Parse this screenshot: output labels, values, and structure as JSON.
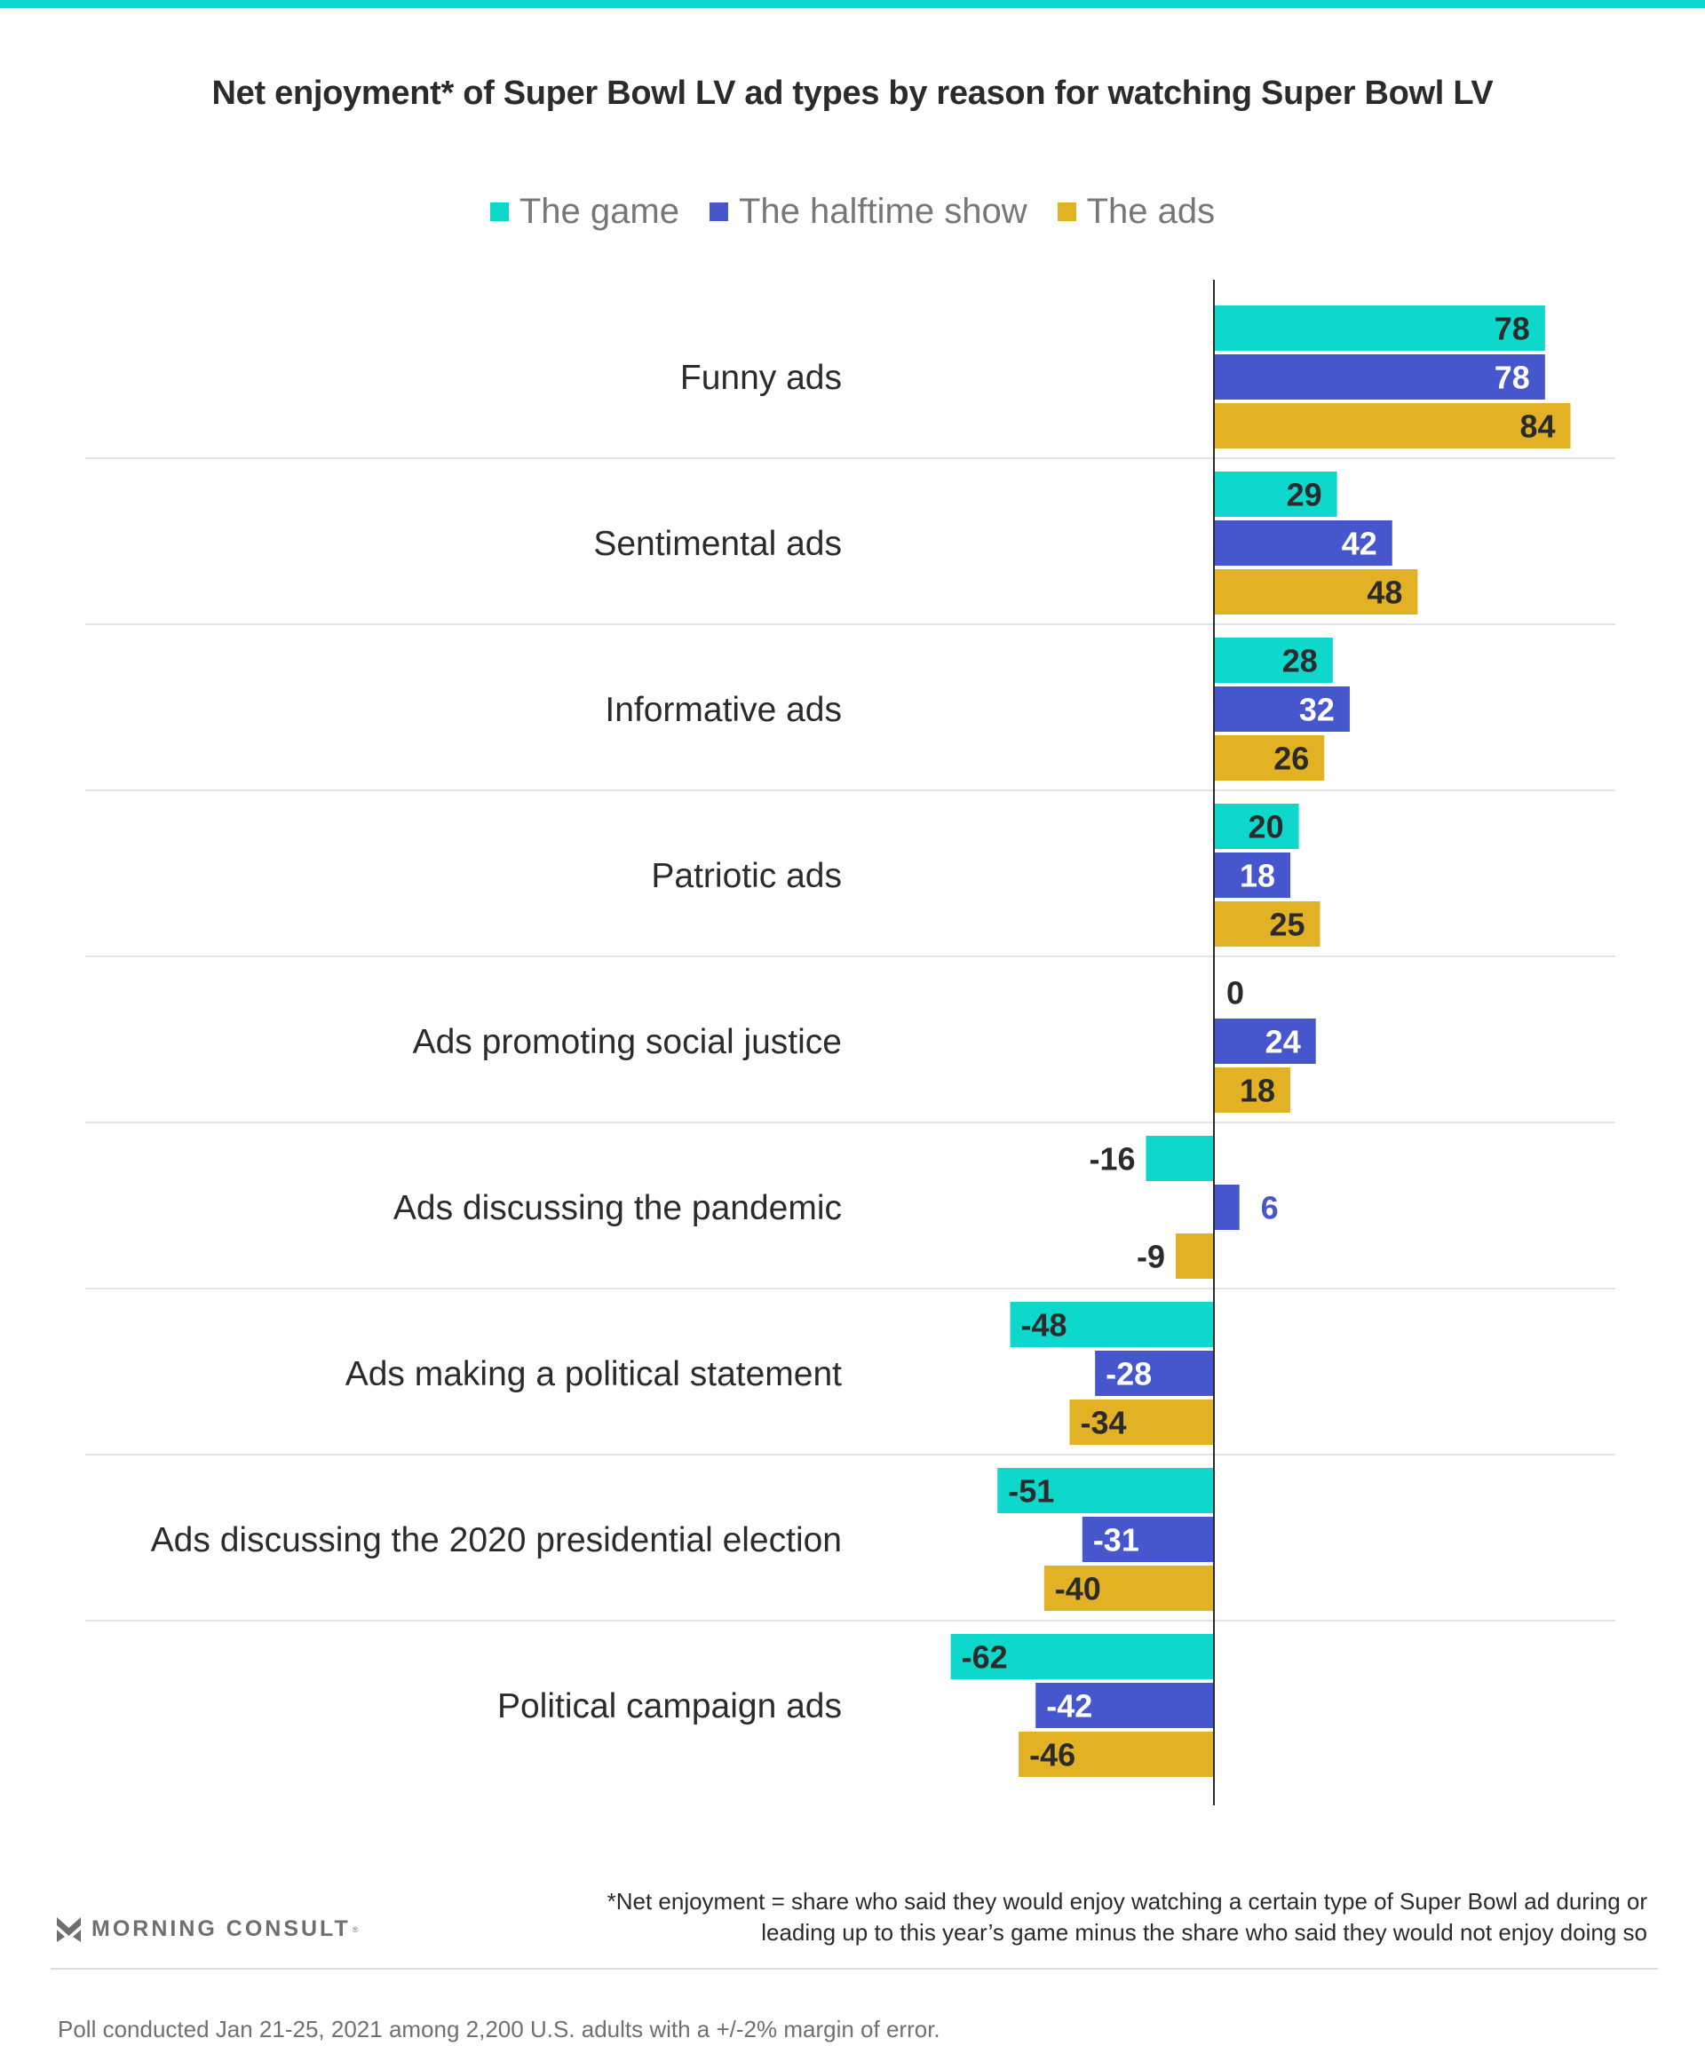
{
  "header": {
    "title": "Net enjoyment* of Super Bowl LV ad types by reason for watching Super Bowl LV"
  },
  "legend": [
    {
      "label": "The game",
      "color": "#0ed7cb"
    },
    {
      "label": "The halftime show",
      "color": "#4657ce"
    },
    {
      "label": "The ads",
      "color": "#e2b124"
    }
  ],
  "chart_data": {
    "type": "bar",
    "orientation": "horizontal",
    "title": "Net enjoyment* of Super Bowl LV ad types by reason for watching Super Bowl LV",
    "xlabel": "",
    "ylabel": "",
    "xlim": [
      -62,
      84
    ],
    "grid": false,
    "legend_position": "top-center",
    "categories": [
      "Funny ads",
      "Sentimental ads",
      "Informative ads",
      "Patriotic ads",
      "Ads promoting social justice",
      "Ads discussing the pandemic",
      "Ads making a political statement",
      "Ads discussing the 2020 presidential election",
      "Political campaign ads"
    ],
    "series": [
      {
        "name": "The game",
        "color": "#0ed7cb",
        "label_color": "#2b2b2b",
        "values": [
          78,
          29,
          28,
          20,
          0,
          -16,
          -48,
          -51,
          -62
        ]
      },
      {
        "name": "The halftime show",
        "color": "#4657ce",
        "label_color": "#ffffff",
        "values": [
          78,
          42,
          32,
          18,
          24,
          6,
          -28,
          -31,
          -42
        ]
      },
      {
        "name": "The ads",
        "color": "#e2b124",
        "label_color": "#2b2b2b",
        "values": [
          84,
          48,
          26,
          25,
          18,
          -9,
          -34,
          -40,
          -46
        ]
      }
    ]
  },
  "footer": {
    "logo_text": "MORNING CONSULT",
    "logo_mark": "®",
    "footnote_line1": "*Net enjoyment = share who said they would enjoy watching a certain type of Super Bowl ad during or",
    "footnote_line2": "leading up to this year’s game minus the share who said they would not enjoy doing so",
    "poll_note": "Poll conducted Jan 21-25, 2021 among 2,200 U.S. adults with a +/-2% margin of error."
  }
}
